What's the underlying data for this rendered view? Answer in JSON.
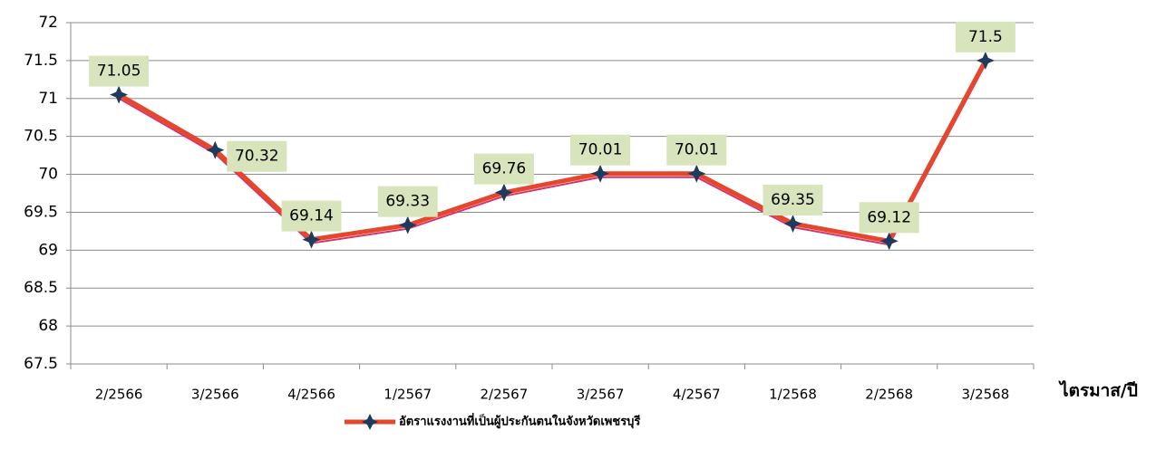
{
  "chart_data": {
    "type": "line",
    "x_label": "ไตรมาส/ปี",
    "categories": [
      "2/2566",
      "3/2566",
      "4/2566",
      "1/2567",
      "2/2567",
      "3/2567",
      "4/2567",
      "1/2568",
      "2/2568",
      "3/2568"
    ],
    "series": [
      {
        "name": "อัตราแรงงานที่เป็นผู้ประกันตนในจังหวัดเพชรบุรี",
        "color": "#e4472b",
        "marker_color": "#1e3a5c",
        "values": [
          71.05,
          70.32,
          69.14,
          69.33,
          69.76,
          70.01,
          70.01,
          69.35,
          69.12,
          71.5
        ]
      }
    ],
    "ylim": [
      67.5,
      72
    ],
    "yticks": [
      67.5,
      68,
      68.5,
      69,
      69.5,
      70,
      70.5,
      71,
      71.5,
      72
    ],
    "grid": true,
    "legend": "bottom",
    "label_fill": "#d8e4bc"
  }
}
